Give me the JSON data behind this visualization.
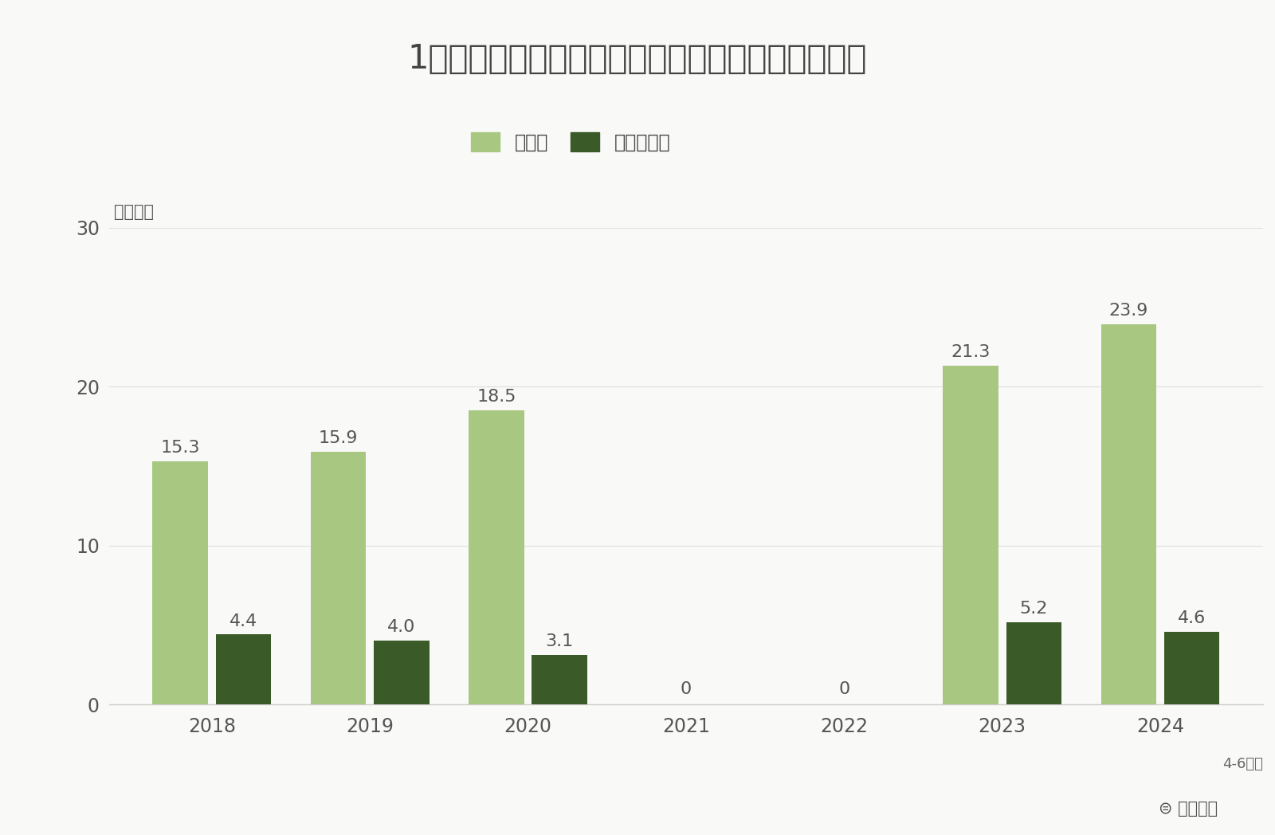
{
  "title": "1人当たり旅行支出の推移（一般客・クルーズ客）",
  "ylabel_unit": "（万円）",
  "years": [
    "2018",
    "2019",
    "2020",
    "2021",
    "2022",
    "2023",
    "2024"
  ],
  "general_values": [
    15.3,
    15.9,
    18.5,
    0,
    0,
    21.3,
    23.9
  ],
  "cruise_values": [
    4.4,
    4.0,
    3.1,
    0,
    0,
    5.2,
    4.6
  ],
  "general_color": "#a8c882",
  "cruise_color": "#3a5a28",
  "ylim": [
    0,
    30
  ],
  "yticks": [
    0,
    10,
    20,
    30
  ],
  "legend_general": "一般客",
  "legend_cruise": "クルーズ客",
  "note": "4-6月期",
  "watermark": "⊜ 訪日ラボ",
  "background_color": "#f9f9f7",
  "title_fontsize": 30,
  "label_fontsize": 16,
  "tick_fontsize": 17,
  "bar_width": 0.35,
  "bar_gap": 0.4
}
